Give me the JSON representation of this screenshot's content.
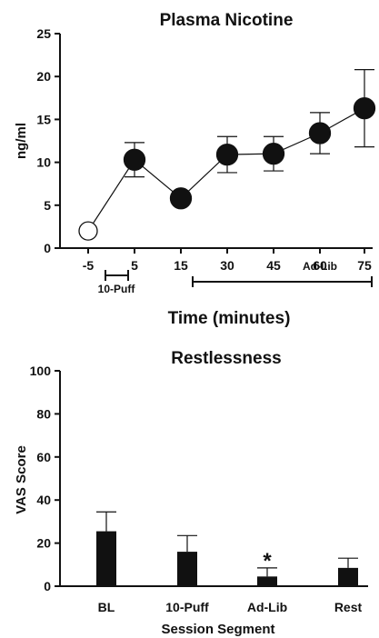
{
  "chart_data": [
    {
      "type": "line",
      "title": "Plasma Nicotine",
      "xlabel": "Time (minutes)",
      "ylabel": "ng/ml",
      "ylim": [
        0,
        25
      ],
      "yticks": [
        "0",
        "5",
        "10",
        "15",
        "20",
        "25"
      ],
      "categories": [
        "-5",
        "5",
        "15",
        "30",
        "45",
        "60",
        "75"
      ],
      "series": [
        {
          "values": [
            2.0,
            10.3,
            5.8,
            10.9,
            11.0,
            13.4,
            16.3
          ],
          "errors": [
            null,
            2.0,
            null,
            2.1,
            2.0,
            2.4,
            4.5
          ],
          "markers": [
            "open",
            "filled",
            "filled",
            "filled",
            "filled",
            "filled",
            "filled"
          ]
        }
      ],
      "brackets": [
        {
          "label": "10-Puff",
          "from": "-5",
          "to": "5"
        },
        {
          "label": "Ad-Lib",
          "from": "15",
          "to": "75"
        }
      ],
      "grid": false,
      "colors": {
        "marker_fill": "#111111",
        "marker_open": "#ffffff",
        "line": "#111111"
      }
    },
    {
      "type": "bar",
      "title": "Restlessness",
      "xlabel": "Session Segment",
      "ylabel": "VAS Score",
      "ylim": [
        0,
        100
      ],
      "yticks": [
        "0",
        "20",
        "40",
        "60",
        "80",
        "100"
      ],
      "categories": [
        "BL",
        "10-Puff",
        "Ad-Lib",
        "Rest"
      ],
      "values": [
        25.5,
        16.0,
        4.5,
        8.5
      ],
      "errors": [
        9.0,
        7.5,
        4.0,
        4.5
      ],
      "annotations": [
        {
          "category": "Ad-Lib",
          "text": "*"
        }
      ],
      "grid": false,
      "colors": {
        "bar": "#111111"
      }
    }
  ]
}
